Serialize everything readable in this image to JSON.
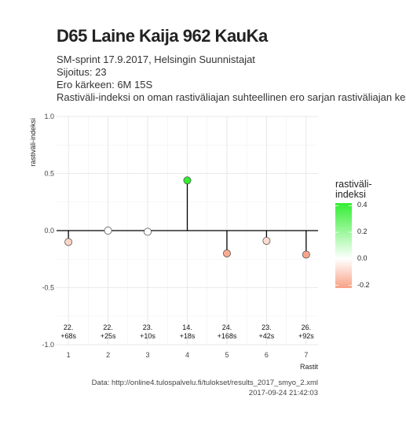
{
  "header": {
    "title": "D65 Laine Kaija 962 KauKa",
    "line1": "SM-sprint 17.9.2017, Helsingin Suunnistajat",
    "line2": "Sijoitus: 23",
    "line3": "Ero kärkeen: 6M 15S",
    "line4": "Rastiväli-indeksi on oman rastiväliajan suhteellinen ero sarjan rastiväliajan keskiarvoon"
  },
  "caption": {
    "data": "Data: http://online4.tulospalvelu.fi/tulokset/results_2017_smyo_2.xml",
    "timestamp": "2017-09-24 21:42:03"
  },
  "legend": {
    "title_line1": "rastiväli-",
    "title_line2": "indeksi",
    "ticks": [
      "0.4",
      "0.2",
      "0.0",
      "-0.2"
    ],
    "tick_values": [
      0.4,
      0.2,
      0.0,
      -0.2
    ],
    "color_high": "#33ee33",
    "color_mid": "#ffffff",
    "color_low": "#f8a186",
    "min": -0.22,
    "max": 0.42
  },
  "chart_data": {
    "type": "lollipop",
    "xlabel": "Rastit",
    "ylabel": "rastiväli-indeksi",
    "xlim": [
      0.7,
      7.3
    ],
    "ylim": [
      -1.0,
      1.0
    ],
    "y_ticks": [
      "1.0",
      "0.5",
      "0.0",
      "-0.5",
      "-1.0"
    ],
    "y_tick_values": [
      1.0,
      0.5,
      0.0,
      -0.5,
      -1.0
    ],
    "x_ticks": [
      "1",
      "2",
      "3",
      "4",
      "5",
      "6",
      "7"
    ],
    "x_tick_values": [
      1,
      2,
      3,
      4,
      5,
      6,
      7
    ],
    "x": [
      1,
      2,
      3,
      4,
      5,
      6,
      7
    ],
    "values": [
      -0.1,
      0.0,
      -0.01,
      0.44,
      -0.2,
      -0.09,
      -0.21
    ],
    "rank_labels": [
      "22.",
      "22.",
      "23.",
      "14.",
      "24.",
      "23.",
      "26."
    ],
    "diff_labels": [
      "+68s",
      "+25s",
      "+10s",
      "+18s",
      "+168s",
      "+42s",
      "+92s"
    ],
    "grid": true
  }
}
